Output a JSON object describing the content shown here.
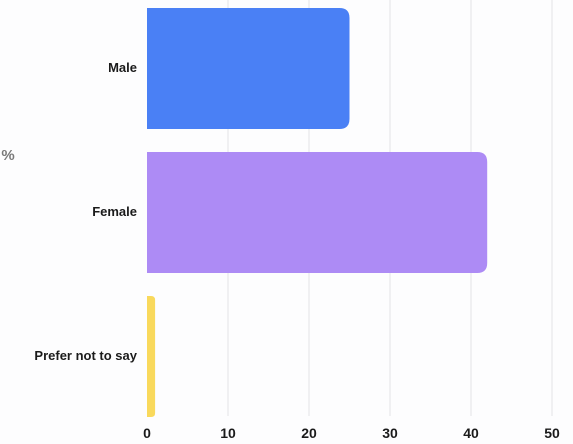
{
  "chart_data": {
    "type": "bar",
    "orientation": "horizontal",
    "ylabel": "%",
    "categories": [
      "Male",
      "Female",
      "Prefer not to say"
    ],
    "values": [
      25,
      42,
      1
    ],
    "xlim": [
      0,
      50
    ],
    "xticks": [
      0,
      10,
      20,
      30,
      40,
      50
    ],
    "grid": true,
    "legend": "none",
    "colors": [
      "#4a80f5",
      "#ad8bf5",
      "#f9d95c"
    ]
  }
}
